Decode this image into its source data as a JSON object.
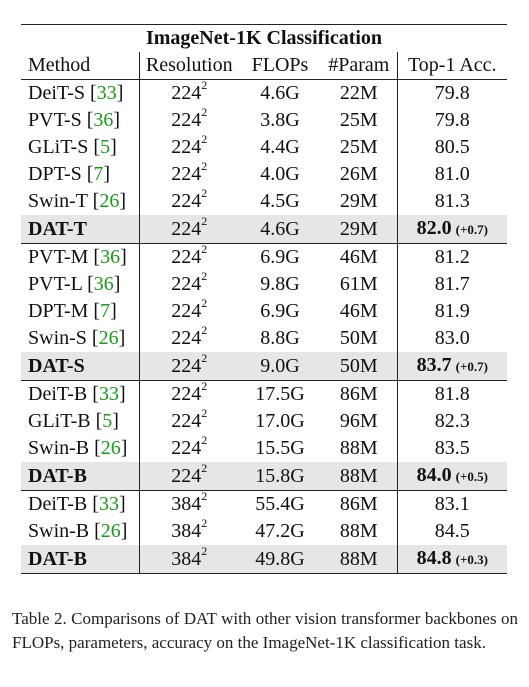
{
  "table": {
    "title": "ImageNet-1K Classification",
    "headers": [
      "Method",
      "Resolution",
      "FLOPs",
      "#Param",
      "Top-1 Acc."
    ],
    "rows": [
      {
        "method": "DeiT-S",
        "cite": "33",
        "res_base": "224",
        "res_exp": "2",
        "flops": "4.6G",
        "params": "22M",
        "acc": "79.8",
        "gain": ""
      },
      {
        "method": "PVT-S",
        "cite": "36",
        "res_base": "224",
        "res_exp": "2",
        "flops": "3.8G",
        "params": "25M",
        "acc": "79.8",
        "gain": ""
      },
      {
        "method": "GLiT-S",
        "cite": "5",
        "res_base": "224",
        "res_exp": "2",
        "flops": "4.4G",
        "params": "25M",
        "acc": "80.5",
        "gain": ""
      },
      {
        "method": "DPT-S",
        "cite": "7",
        "res_base": "224",
        "res_exp": "2",
        "flops": "4.0G",
        "params": "26M",
        "acc": "81.0",
        "gain": ""
      },
      {
        "method": "Swin-T",
        "cite": "26",
        "res_base": "224",
        "res_exp": "2",
        "flops": "4.5G",
        "params": "29M",
        "acc": "81.3",
        "gain": ""
      },
      {
        "method": "DAT-T",
        "cite": "",
        "res_base": "224",
        "res_exp": "2",
        "flops": "4.6G",
        "params": "29M",
        "acc": "82.0",
        "gain": "(+0.7)"
      },
      {
        "method": "PVT-M",
        "cite": "36",
        "res_base": "224",
        "res_exp": "2",
        "flops": "6.9G",
        "params": "46M",
        "acc": "81.2",
        "gain": ""
      },
      {
        "method": "PVT-L",
        "cite": "36",
        "res_base": "224",
        "res_exp": "2",
        "flops": "9.8G",
        "params": "61M",
        "acc": "81.7",
        "gain": ""
      },
      {
        "method": "DPT-M",
        "cite": "7",
        "res_base": "224",
        "res_exp": "2",
        "flops": "6.9G",
        "params": "46M",
        "acc": "81.9",
        "gain": ""
      },
      {
        "method": "Swin-S",
        "cite": "26",
        "res_base": "224",
        "res_exp": "2",
        "flops": "8.8G",
        "params": "50M",
        "acc": "83.0",
        "gain": ""
      },
      {
        "method": "DAT-S",
        "cite": "",
        "res_base": "224",
        "res_exp": "2",
        "flops": "9.0G",
        "params": "50M",
        "acc": "83.7",
        "gain": "(+0.7)"
      },
      {
        "method": "DeiT-B",
        "cite": "33",
        "res_base": "224",
        "res_exp": "2",
        "flops": "17.5G",
        "params": "86M",
        "acc": "81.8",
        "gain": ""
      },
      {
        "method": "GLiT-B",
        "cite": "5",
        "res_base": "224",
        "res_exp": "2",
        "flops": "17.0G",
        "params": "96M",
        "acc": "82.3",
        "gain": ""
      },
      {
        "method": "Swin-B",
        "cite": "26",
        "res_base": "224",
        "res_exp": "2",
        "flops": "15.5G",
        "params": "88M",
        "acc": "83.5",
        "gain": ""
      },
      {
        "method": "DAT-B",
        "cite": "",
        "res_base": "224",
        "res_exp": "2",
        "flops": "15.8G",
        "params": "88M",
        "acc": "84.0",
        "gain": "(+0.5)"
      },
      {
        "method": "DeiT-B",
        "cite": "33",
        "res_base": "384",
        "res_exp": "2",
        "flops": "55.4G",
        "params": "86M",
        "acc": "83.1",
        "gain": ""
      },
      {
        "method": "Swin-B",
        "cite": "26",
        "res_base": "384",
        "res_exp": "2",
        "flops": "47.2G",
        "params": "88M",
        "acc": "84.5",
        "gain": ""
      },
      {
        "method": "DAT-B",
        "cite": "",
        "res_base": "384",
        "res_exp": "2",
        "flops": "49.8G",
        "params": "88M",
        "acc": "84.8",
        "gain": "(+0.3)"
      }
    ]
  },
  "caption": "Table 2. Comparisons of DAT with other vision transformer backbones on FLOPs, parameters, accuracy on the ImageNet-1K classification task.",
  "colors": {
    "citation": "#1a9a1a",
    "highlight_row": "#e6e6e6"
  }
}
